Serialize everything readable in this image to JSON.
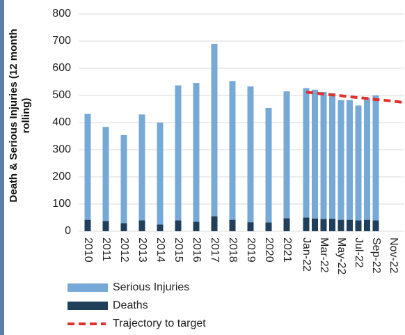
{
  "chart_data": {
    "type": "bar",
    "y_label": "Death & Serious Injuries (12 month rolling)",
    "categories": [
      "2010",
      "2011",
      "2012",
      "2013",
      "2014",
      "2015",
      "2016",
      "2017",
      "2018",
      "2019",
      "2020",
      "2021",
      "Jan-22",
      null,
      "Mar-22",
      null,
      "May-22",
      null,
      "Jul-22",
      null,
      "Sep-22",
      null,
      "Nov-22",
      null
    ],
    "series": [
      {
        "name": "Serious Injuries",
        "color": "#77a9d6",
        "values": [
          390,
          346,
          324,
          390,
          375,
          497,
          511,
          635,
          511,
          500,
          422,
          467,
          477,
          474,
          468,
          462,
          440,
          441,
          423,
          448,
          460,
          null,
          null,
          null
        ]
      },
      {
        "name": "Deaths",
        "color": "#203f5b",
        "values": [
          42,
          38,
          30,
          40,
          25,
          40,
          35,
          55,
          42,
          33,
          32,
          48,
          50,
          47,
          45,
          46,
          42,
          42,
          40,
          42,
          40,
          null,
          null,
          null
        ]
      },
      {
        "name": "Trajectory to target",
        "type": "line",
        "color": "#e2302d",
        "dashed": true,
        "values": [
          null,
          null,
          null,
          null,
          null,
          null,
          null,
          null,
          null,
          null,
          null,
          null,
          512,
          509,
          505,
          502,
          499,
          495,
          492,
          489,
          485,
          482,
          479,
          475
        ]
      }
    ],
    "ylim": [
      0,
      800
    ],
    "yticks": [
      0,
      100,
      200,
      300,
      400,
      500,
      600,
      700,
      800
    ],
    "grid": true,
    "legend": "bottom"
  }
}
